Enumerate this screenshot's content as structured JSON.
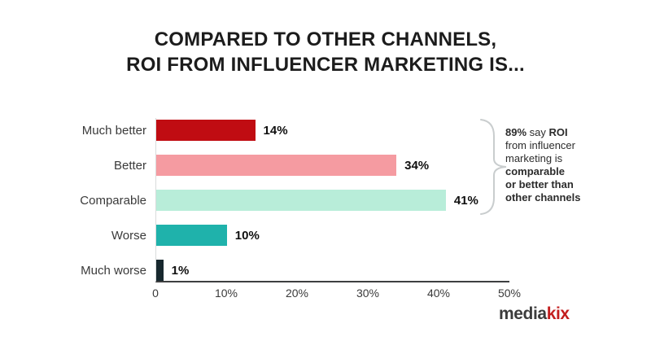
{
  "title": {
    "line1": "COMPARED TO OTHER CHANNELS,",
    "line2": "ROI FROM INFLUENCER MARKETING IS..."
  },
  "chart_data": {
    "type": "bar",
    "orientation": "horizontal",
    "title": "COMPARED TO OTHER CHANNELS, ROI FROM INFLUENCER MARKETING IS...",
    "categories": [
      "Much better",
      "Better",
      "Comparable",
      "Worse",
      "Much worse"
    ],
    "values": [
      14,
      34,
      41,
      10,
      1
    ],
    "value_labels": [
      "14%",
      "34%",
      "41%",
      "10%",
      "1%"
    ],
    "bar_colors": [
      "#c00c12",
      "#f59ba1",
      "#b8edd9",
      "#1fb2ab",
      "#17282e"
    ],
    "xlim": [
      0,
      50
    ],
    "x_ticks": [
      "0",
      "10%",
      "20%",
      "30%",
      "40%",
      "50%"
    ],
    "grid": false,
    "legend": false,
    "annotation": "89% say ROI from influencer marketing is comparable or better than other channels"
  },
  "annotation": {
    "line1_bold1": "89%",
    "line1_normal": " say ",
    "line1_bold2": "ROI",
    "line2": "from influencer",
    "line3": "marketing is",
    "line4": "comparable",
    "line5": "or better than",
    "line6": "other channels"
  },
  "branding": {
    "name_dark": "media",
    "name_accent": "kix",
    "accent_color": "#c31e1e"
  }
}
